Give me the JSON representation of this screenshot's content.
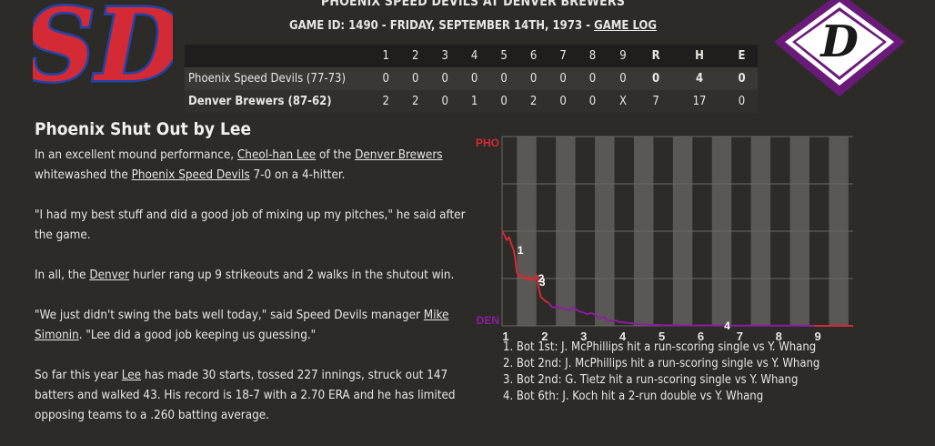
{
  "header": {
    "matchup": "PHOENIX SPEED DEVILS AT DENVER BREWERS",
    "game_info": "GAME ID: 1490 - FRIDAY, SEPTEMBER 14TH, 1973 - ",
    "game_log_link": "GAME LOG"
  },
  "logos": {
    "away": {
      "text": "SD",
      "color": "#d42a35",
      "outline": "#2244a8"
    },
    "home": {
      "text": "D",
      "color": "#6a1b79",
      "outline": "#ffffff"
    }
  },
  "linescore": {
    "columns": [
      "1",
      "2",
      "3",
      "4",
      "5",
      "6",
      "7",
      "8",
      "9",
      "R",
      "H",
      "E"
    ],
    "rows": [
      {
        "team": "Phoenix Speed Devils (77-73)",
        "innings": [
          "0",
          "0",
          "0",
          "0",
          "0",
          "0",
          "0",
          "0",
          "0"
        ],
        "R": "0",
        "H": "4",
        "E": "0"
      },
      {
        "team": "Denver Brewers (87-62)",
        "innings": [
          "2",
          "2",
          "0",
          "1",
          "0",
          "2",
          "0",
          "0",
          "X"
        ],
        "R": "7",
        "H": "17",
        "E": "0"
      }
    ]
  },
  "article": {
    "headline": "Phoenix Shut Out by Lee",
    "p1_a": "In an excellent mound performance, ",
    "p1_player": "Cheol-han Lee",
    "p1_b": " of the ",
    "p1_team": "Denver Brewers",
    "p1_c": " whitewashed the ",
    "p1_opp": "Phoenix Speed Devils",
    "p1_d": " 7-0 on a 4-hitter.",
    "p2": "\"I had my best stuff and did a good job of mixing up my pitches,\" he said after the game.",
    "p3_a": "In all, the ",
    "p3_team": "Denver",
    "p3_b": " hurler rang up 9 strikeouts and 2 walks in the shutout win.",
    "p4_a": "\"We just didn't swing the bats well today,\" said Speed Devils manager ",
    "p4_mgr": "Mike Simonin",
    "p4_b": ". \"Lee did a good job keeping us guessing.\"",
    "p5_a": "So far this year ",
    "p5_player": "Lee",
    "p5_b": " has made 30 starts, tossed 227 innings, struck out 147 batters and walked 43. His record is 18-7 with a 2.70 ERA and he has limited opposing teams to a .260 batting average."
  },
  "chart_data": {
    "type": "line",
    "top_label": "PHO",
    "bottom_label": "DEN",
    "x_ticks": [
      "1",
      "2",
      "3",
      "4",
      "5",
      "6",
      "7",
      "8",
      "9"
    ],
    "ylim": [
      0,
      100
    ],
    "series": [
      {
        "values": [
          [
            0,
            50
          ],
          [
            0.06,
            48
          ],
          [
            0.12,
            45
          ],
          [
            0.18,
            47
          ],
          [
            0.24,
            43
          ],
          [
            0.3,
            40
          ],
          [
            0.34,
            35
          ],
          [
            0.38,
            28
          ],
          [
            0.44,
            26
          ],
          [
            0.5,
            27
          ],
          [
            0.56,
            25
          ],
          [
            0.62,
            26
          ],
          [
            0.66,
            24
          ],
          [
            0.7,
            26
          ],
          [
            0.76,
            24
          ],
          [
            0.8,
            25
          ],
          [
            0.84,
            24
          ],
          [
            0.9,
            27
          ],
          [
            0.92,
            22
          ],
          [
            0.96,
            18
          ],
          [
            1.0,
            15
          ],
          [
            1.06,
            14
          ],
          [
            1.12,
            13
          ],
          [
            1.2,
            12
          ],
          [
            1.28,
            10
          ],
          [
            1.35,
            9.5
          ],
          [
            1.4,
            11
          ],
          [
            1.46,
            9
          ],
          [
            1.52,
            10
          ],
          [
            1.6,
            8.5
          ],
          [
            1.66,
            9
          ],
          [
            1.74,
            8
          ],
          [
            1.82,
            10
          ],
          [
            1.88,
            9
          ],
          [
            1.95,
            8
          ],
          [
            2.0,
            7.5
          ],
          [
            2.1,
            7
          ],
          [
            2.2,
            6
          ],
          [
            2.28,
            7
          ],
          [
            2.36,
            6
          ],
          [
            2.44,
            5
          ],
          [
            2.52,
            4
          ],
          [
            2.6,
            5
          ],
          [
            2.7,
            3
          ],
          [
            2.8,
            2.5
          ],
          [
            2.9,
            3
          ],
          [
            3.0,
            2
          ],
          [
            3.1,
            2
          ],
          [
            3.2,
            1.5
          ],
          [
            3.3,
            1.5
          ],
          [
            3.4,
            1
          ],
          [
            3.5,
            1
          ],
          [
            3.6,
            0.8
          ],
          [
            3.7,
            0.6
          ],
          [
            3.8,
            0.5
          ],
          [
            3.9,
            0.5
          ],
          [
            4.0,
            0.4
          ],
          [
            4.2,
            0.3
          ],
          [
            4.5,
            0.3
          ],
          [
            4.8,
            0.2
          ],
          [
            5.1,
            0.2
          ],
          [
            5.4,
            0.2
          ],
          [
            5.7,
            0.1
          ],
          [
            6.0,
            0.1
          ],
          [
            6.5,
            0.1
          ],
          [
            7.0,
            0.1
          ],
          [
            7.5,
            0.1
          ],
          [
            8.0,
            0
          ],
          [
            8.5,
            0
          ],
          [
            9.0,
            0
          ]
        ]
      }
    ],
    "markers": [
      {
        "label": "1",
        "x": 0.3,
        "y": 40
      },
      {
        "label": "2",
        "x": 0.83,
        "y": 25
      },
      {
        "label": "3",
        "x": 0.86,
        "y": 23
      },
      {
        "label": "4",
        "x": 5.6,
        "y": 0.1
      }
    ],
    "colors": {
      "away": "#d42a35",
      "home": "#8a1fa0",
      "shade": "#5a5855",
      "grid": "#6a6865"
    }
  },
  "scoring_notes": [
    "1. Bot 1st: J. McPhillips hit a run-scoring single vs Y. Whang",
    "2. Bot 2nd: J. McPhillips hit a run-scoring single vs Y. Whang",
    "3. Bot 2nd: G. Tietz hit a run-scoring single vs Y. Whang",
    "4. Bot 6th: J. Koch hit a 2-run double vs Y. Whang"
  ]
}
